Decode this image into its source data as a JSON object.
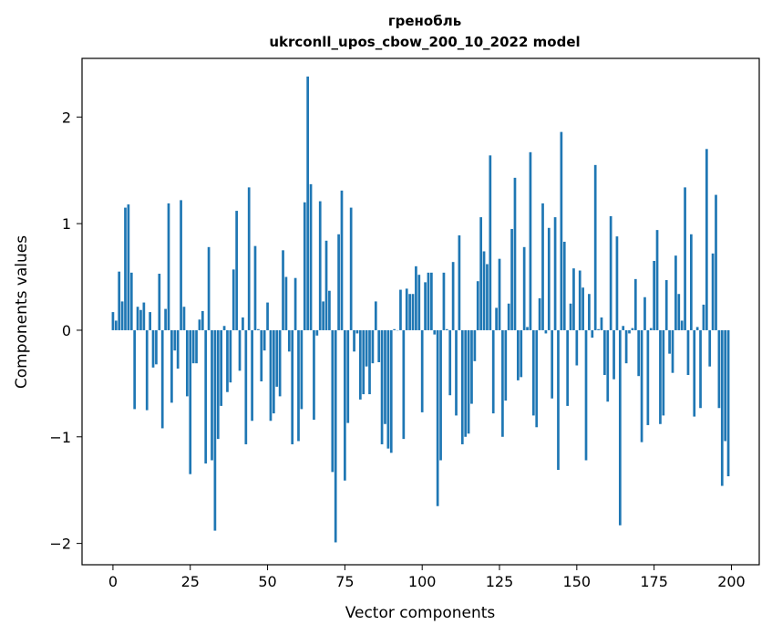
{
  "chart_data": {
    "type": "bar",
    "title": "гренобль",
    "subtitle": "ukrconll_upos_cbow_200_10_2022 model",
    "xlabel": "Vector components",
    "ylabel": "Components values",
    "xlim": [
      -10,
      209
    ],
    "ylim": [
      -2.2,
      2.55
    ],
    "xticks": [
      0,
      25,
      50,
      75,
      100,
      125,
      150,
      175,
      200
    ],
    "yticks": [
      -2,
      -1,
      0,
      1,
      2
    ],
    "ytick_labels": [
      "−2",
      "−1",
      "0",
      "1",
      "2"
    ],
    "bar_color": "#1f77b4",
    "grid": false,
    "values": [
      0.17,
      0.09,
      0.55,
      0.27,
      1.15,
      1.18,
      0.54,
      -0.74,
      0.22,
      0.19,
      0.26,
      -0.75,
      0.17,
      -0.35,
      -0.32,
      0.53,
      -0.92,
      0.2,
      1.19,
      -0.68,
      -0.19,
      -0.36,
      1.22,
      0.22,
      -0.62,
      -1.35,
      -0.31,
      -0.31,
      0.1,
      0.18,
      -1.25,
      0.78,
      -1.22,
      -1.88,
      -1.02,
      -0.71,
      0.04,
      -0.58,
      -0.49,
      0.57,
      1.12,
      -0.38,
      0.12,
      -1.07,
      1.34,
      -0.85,
      0.79,
      0.01,
      -0.48,
      -0.19,
      0.26,
      -0.85,
      -0.78,
      -0.53,
      -0.62,
      0.75,
      0.5,
      -0.2,
      -1.07,
      0.49,
      -1.04,
      -0.74,
      1.2,
      2.38,
      1.37,
      -0.84,
      -0.05,
      1.21,
      0.27,
      0.84,
      0.37,
      -1.33,
      -1.99,
      0.9,
      1.31,
      -1.41,
      -0.87,
      1.15,
      -0.2,
      -0.03,
      -0.65,
      -0.6,
      -0.34,
      -0.6,
      -0.31,
      0.27,
      -0.3,
      -1.07,
      -0.88,
      -1.11,
      -1.15,
      0.01,
      0.0,
      0.38,
      -1.02,
      0.39,
      0.34,
      0.34,
      0.6,
      0.52,
      -0.77,
      0.45,
      0.54,
      0.54,
      -0.04,
      -1.65,
      -1.22,
      0.54,
      0.01,
      -0.61,
      0.64,
      -0.8,
      0.89,
      -1.07,
      -1.0,
      -0.97,
      -0.69,
      -0.29,
      0.46,
      1.06,
      0.74,
      0.62,
      1.64,
      -0.78,
      0.21,
      0.67,
      -1.0,
      -0.66,
      0.25,
      0.95,
      1.43,
      -0.47,
      -0.44,
      0.78,
      0.03,
      1.67,
      -0.8,
      -0.91,
      0.3,
      1.19,
      -0.03,
      0.96,
      -0.64,
      1.06,
      -1.31,
      1.86,
      0.83,
      -0.71,
      0.25,
      0.58,
      -0.33,
      0.56,
      0.4,
      -1.22,
      0.34,
      -0.07,
      1.55,
      0.01,
      0.12,
      -0.42,
      -0.67,
      1.07,
      -0.46,
      0.88,
      -1.83,
      0.04,
      -0.31,
      -0.03,
      0.02,
      0.48,
      -0.43,
      -1.05,
      0.31,
      -0.89,
      0.02,
      0.65,
      0.94,
      -0.88,
      -0.8,
      0.47,
      -0.22,
      -0.4,
      0.7,
      0.34,
      0.09,
      1.34,
      -0.42,
      0.9,
      -0.81,
      0.03,
      -0.73,
      0.24,
      1.7,
      -0.34,
      0.72,
      1.27,
      -0.73,
      -1.46,
      -1.04,
      -1.37
    ]
  }
}
